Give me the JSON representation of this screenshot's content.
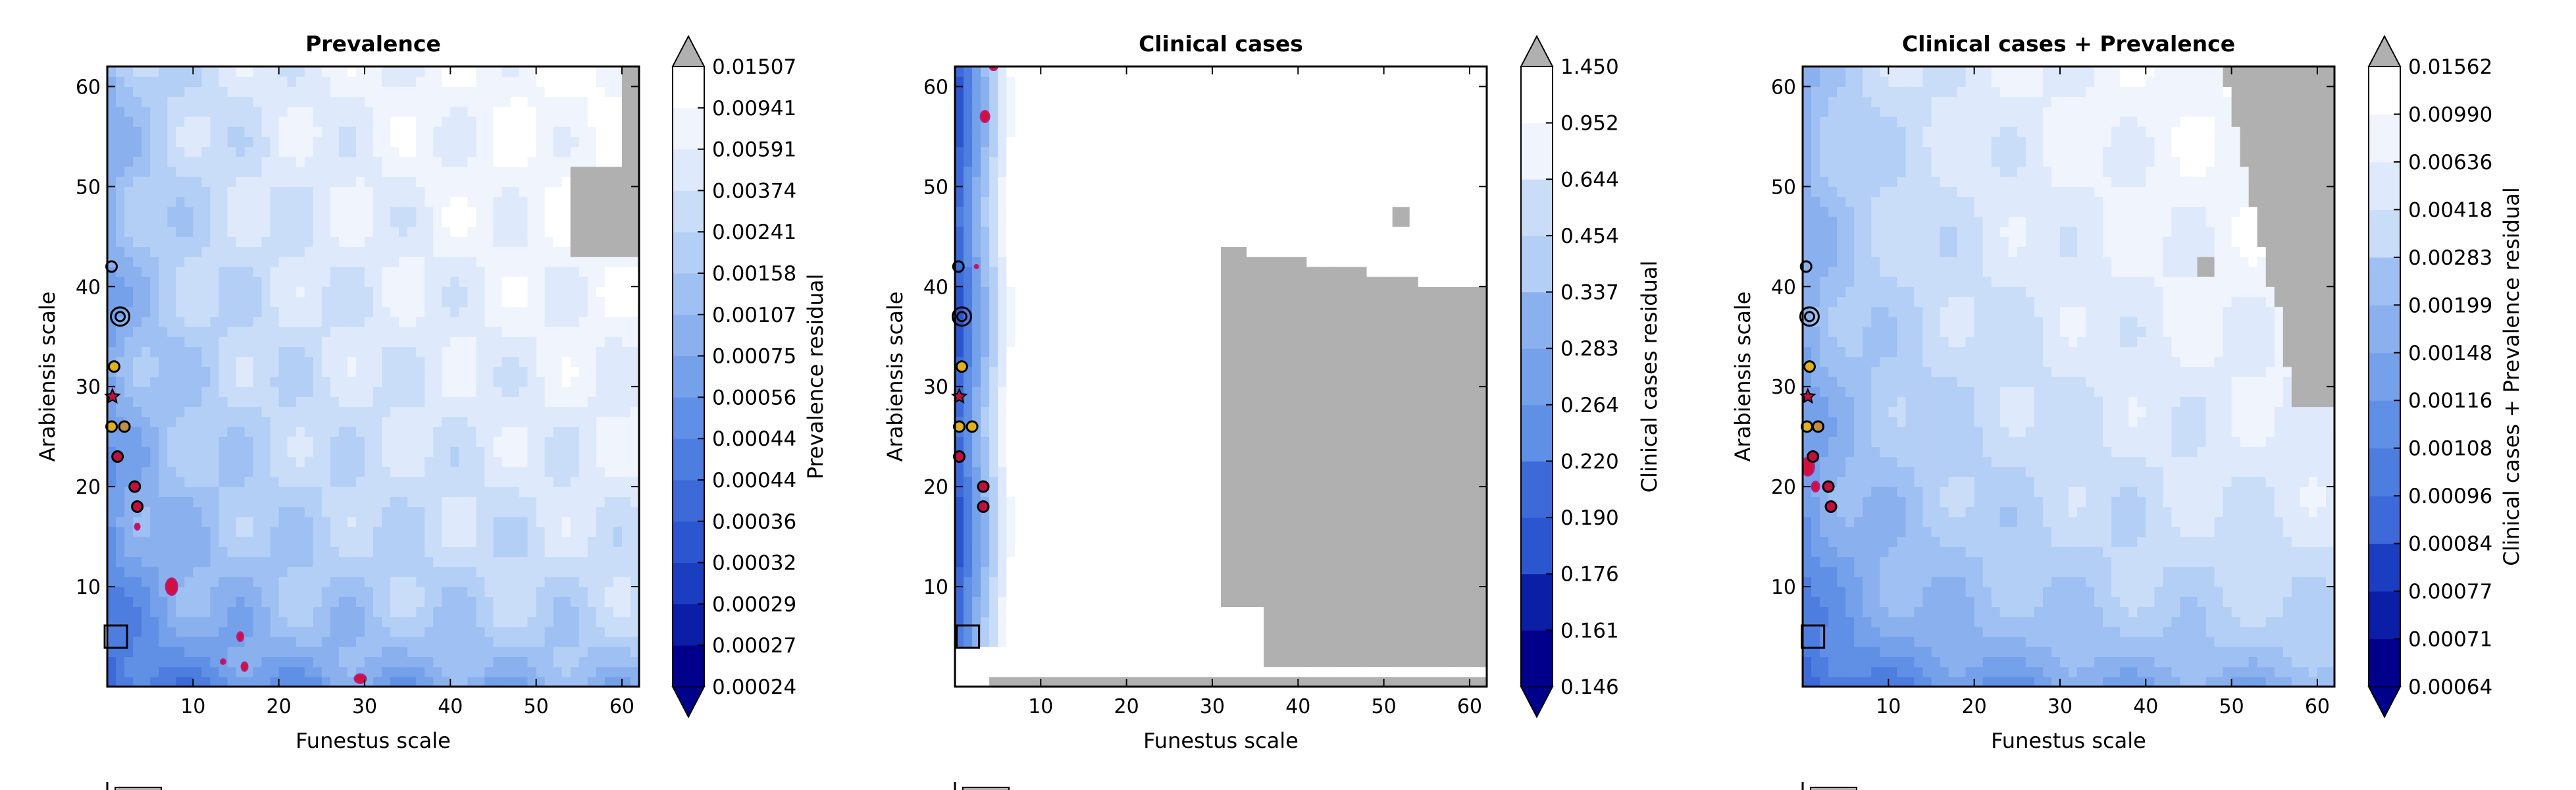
{
  "chart_data": [
    {
      "type": "heatmap",
      "title": "Prevalence",
      "xlabel": "Funestus scale",
      "ylabel": "Arabiensis scale",
      "xlim": [
        0,
        62
      ],
      "ylim": [
        0,
        62
      ],
      "xticks": [
        10,
        20,
        30,
        40,
        50,
        60
      ],
      "yticks": [
        10,
        20,
        30,
        40,
        50,
        60
      ],
      "colorbar_label": "Prevalence residual",
      "colorbar_ticks": [
        "0.00024",
        "0.00027",
        "0.00029",
        "0.00032",
        "0.00036",
        "0.00044",
        "0.00044",
        "0.00056",
        "0.00075",
        "0.00107",
        "0.00158",
        "0.00241",
        "0.00374",
        "0.00591",
        "0.00941",
        "0.01507"
      ],
      "colorbar_extend": "both",
      "grid": false,
      "masked_color": "#b0b0b0",
      "markers": [
        {
          "x": 1.5,
          "y": 37,
          "kind": "double-circle"
        },
        {
          "x": 0.5,
          "y": 42,
          "kind": "circle"
        },
        {
          "x": 0.8,
          "y": 32,
          "kind": "circle",
          "fill": "#e0b020"
        },
        {
          "x": 0.6,
          "y": 29,
          "kind": "star",
          "fill": "#c01040"
        },
        {
          "x": 0.5,
          "y": 26,
          "kind": "circle",
          "fill": "#e0b020"
        },
        {
          "x": 2.0,
          "y": 26,
          "kind": "circle",
          "fill": "#c09040"
        },
        {
          "x": 1.2,
          "y": 23,
          "kind": "circle",
          "fill": "#c01040"
        },
        {
          "x": 3.2,
          "y": 20,
          "kind": "circle",
          "fill": "#c01040"
        },
        {
          "x": 3.5,
          "y": 18,
          "kind": "circle",
          "fill": "#c01040"
        },
        {
          "x": 1.0,
          "y": 5,
          "kind": "square"
        }
      ]
    },
    {
      "type": "heatmap",
      "title": "Clinical cases",
      "xlabel": "Funestus scale",
      "ylabel": "Arabiensis scale",
      "xlim": [
        0,
        62
      ],
      "ylim": [
        0,
        62
      ],
      "xticks": [
        10,
        20,
        30,
        40,
        50,
        60
      ],
      "yticks": [
        10,
        20,
        30,
        40,
        50,
        60
      ],
      "colorbar_label": "Clinical cases residual",
      "colorbar_ticks": [
        "0.146",
        "0.161",
        "0.176",
        "0.190",
        "0.220",
        "0.264",
        "0.283",
        "0.337",
        "0.454",
        "0.644",
        "0.952",
        "1.450"
      ],
      "colorbar_extend": "both",
      "grid": false,
      "masked_color": "#b0b0b0",
      "markers": [
        {
          "x": 0.8,
          "y": 37,
          "kind": "double-circle"
        },
        {
          "x": 0.4,
          "y": 42,
          "kind": "circle"
        },
        {
          "x": 0.8,
          "y": 32,
          "kind": "circle",
          "fill": "#e0b020"
        },
        {
          "x": 0.5,
          "y": 29,
          "kind": "star",
          "fill": "#c01040"
        },
        {
          "x": 0.5,
          "y": 26,
          "kind": "circle",
          "fill": "#e0b020"
        },
        {
          "x": 2.0,
          "y": 26,
          "kind": "circle",
          "fill": "#e0b020"
        },
        {
          "x": 0.5,
          "y": 23,
          "kind": "circle",
          "fill": "#c01040"
        },
        {
          "x": 3.3,
          "y": 20,
          "kind": "circle",
          "fill": "#c01040"
        },
        {
          "x": 3.3,
          "y": 18,
          "kind": "circle",
          "fill": "#c01040"
        },
        {
          "x": 1.5,
          "y": 5,
          "kind": "square"
        }
      ]
    },
    {
      "type": "heatmap",
      "title": "Clinical cases + Prevalence",
      "xlabel": "Funestus scale",
      "ylabel": "Arabiensis scale",
      "xlim": [
        0,
        62
      ],
      "ylim": [
        0,
        62
      ],
      "xticks": [
        10,
        20,
        30,
        40,
        50,
        60
      ],
      "yticks": [
        10,
        20,
        30,
        40,
        50,
        60
      ],
      "colorbar_label": "Clinical cases + Prevalence residual",
      "colorbar_ticks": [
        "0.00064",
        "0.00071",
        "0.00077",
        "0.00084",
        "0.00096",
        "0.00108",
        "0.00116",
        "0.00148",
        "0.00199",
        "0.00283",
        "0.00418",
        "0.00636",
        "0.00990",
        "0.01562"
      ],
      "colorbar_extend": "both",
      "grid": false,
      "masked_color": "#b0b0b0",
      "markers": [
        {
          "x": 0.8,
          "y": 37,
          "kind": "double-circle"
        },
        {
          "x": 0.4,
          "y": 42,
          "kind": "circle"
        },
        {
          "x": 0.8,
          "y": 32,
          "kind": "circle",
          "fill": "#e0b020"
        },
        {
          "x": 0.6,
          "y": 29,
          "kind": "star",
          "fill": "#c01040"
        },
        {
          "x": 0.5,
          "y": 26,
          "kind": "circle",
          "fill": "#e0b020"
        },
        {
          "x": 1.8,
          "y": 26,
          "kind": "circle",
          "fill": "#c09040"
        },
        {
          "x": 1.2,
          "y": 23,
          "kind": "circle",
          "fill": "#c01040"
        },
        {
          "x": 3.0,
          "y": 20,
          "kind": "circle",
          "fill": "#c01040"
        },
        {
          "x": 3.3,
          "y": 18,
          "kind": "circle",
          "fill": "#c01040"
        },
        {
          "x": 1.2,
          "y": 5,
          "kind": "square"
        }
      ]
    }
  ],
  "colors": {
    "palette": [
      "#00008b",
      "#0a1ea6",
      "#1b3ec1",
      "#2c56d0",
      "#3d6ad8",
      "#4e7de0",
      "#6090e6",
      "#75a1ea",
      "#8ab0ee",
      "#9fc0f2",
      "#b4cff5",
      "#c9ddf8",
      "#dee9fb",
      "#eff4fd",
      "#ffffff"
    ],
    "over": "#b0b0b0",
    "masked": "#b0b0b0",
    "contour_highlight": "#b0208e",
    "hotspot": "#d01040"
  }
}
